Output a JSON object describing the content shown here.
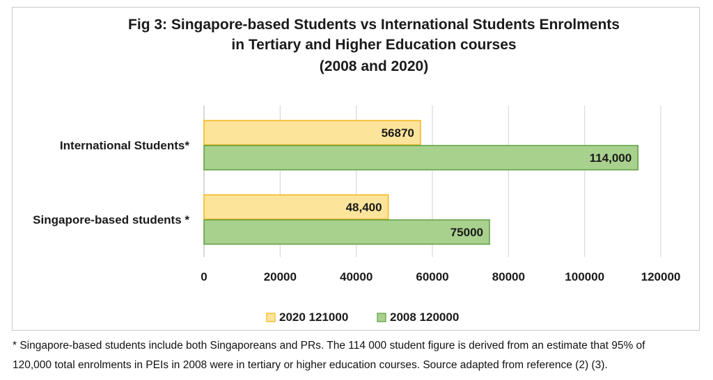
{
  "chart_data": {
    "type": "bar",
    "orientation": "horizontal",
    "title_lines": [
      "Fig 3: Singapore-based Students vs International Students Enrolments",
      "in Tertiary and Higher Education courses",
      "(2008 and 2020)"
    ],
    "categories": [
      "International Students*",
      "Singapore-based students *"
    ],
    "series": [
      {
        "name": "2020 121000",
        "values": [
          56870,
          48400
        ],
        "data_labels": [
          "56870",
          "48,400"
        ],
        "fill": "#fde49b",
        "stroke": "#f2b619"
      },
      {
        "name": "2008 120000",
        "values": [
          114000,
          75000
        ],
        "data_labels": [
          "114,000",
          "75000"
        ],
        "fill": "#a9d18e",
        "stroke": "#5c9e3e"
      }
    ],
    "xlim": [
      0,
      120000
    ],
    "x_ticks": [
      0,
      20000,
      40000,
      60000,
      80000,
      100000,
      120000
    ],
    "x_tick_labels": [
      "0",
      "20000",
      "40000",
      "60000",
      "80000",
      "100000",
      "120000"
    ],
    "grid": "vertical",
    "gridline_color": "#d9d9d9",
    "legend_position": "bottom"
  },
  "footnote": {
    "line1": "* Singapore-based students include both Singaporeans and PRs.  The 114 000 student figure is derived from an estimate that 95% of",
    "line2": "120,000 total enrolments in PEIs in 2008 were in tertiary or higher education courses. Source adapted from reference (2) (3)."
  }
}
